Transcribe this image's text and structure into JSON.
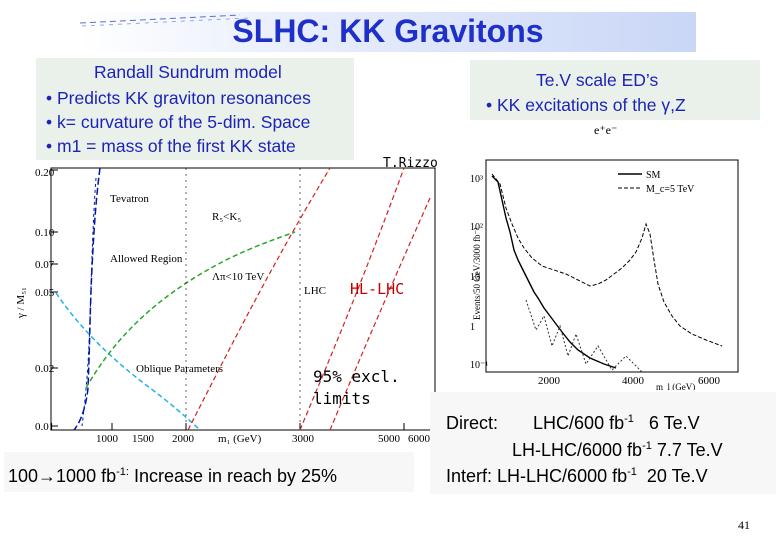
{
  "slide": {
    "title": "SLHC: KK Gravitons",
    "page_number": "41"
  },
  "rs_box": {
    "heading": "Randall Sundrum  model",
    "bullets": [
      "Predicts KK graviton resonances",
      "k= curvature of the 5-dim. Space",
      "m1 = mass of the first KK state"
    ]
  },
  "tev_box": {
    "heading": "Te.V scale ED’s",
    "bullet": "KK excitations of the γ,Z"
  },
  "left_plot": {
    "credit": "T.Rizzo",
    "y_axis_label": "γ / M₅₁",
    "y_ticks": [
      "0.20",
      "0.10",
      "0.07",
      "0.05",
      "0.02",
      "0.01"
    ],
    "x_ticks": [
      "1000",
      "1500",
      "2000",
      "3000",
      "5000",
      "6000"
    ],
    "x_axis_label": "m₁ (GeV)",
    "labels": {
      "tevatron": "Tevatron",
      "rs_constraint": "R₅<K₅",
      "allowed": "Allowed Region",
      "lambda": "Λπ<10 TeV",
      "lhc": "LHC",
      "hl_lhc": "HL-LHC",
      "oblique": "Oblique Parameters",
      "excl_line1": "95% excl.",
      "excl_line2": "limits"
    },
    "reach_note": "100→1000 fb",
    "reach_sup": "-1:",
    "reach_rest": " Increase in reach by 25%"
  },
  "right_plot": {
    "title": "e⁺e⁻",
    "y_axis_label": "Events/50 GeV/3000 fb⁻¹",
    "y_ticks": [
      "10³",
      "10²",
      "10",
      "1",
      "10⁻¹"
    ],
    "x_ticks": [
      "2000",
      "4000",
      "6000"
    ],
    "x_axis_label": "m_l (GeV)",
    "legend": [
      "SM",
      "M_c=5 TeV"
    ]
  },
  "reach_table": {
    "row1_label": "Direct:",
    "row1_lumi": "LHC/600 fb",
    "row1_sup": "-1",
    "row1_val": "6  Te.V",
    "row2_lumi": "LH-LHC/6000 fb",
    "row2_sup": "-1",
    "row2_val": "7.7 Te.V",
    "row3_label": "Interf:",
    "row3_lumi": "LH-LHC/6000 fb",
    "row3_sup": "-1",
    "row3_val": "20 Te.V"
  },
  "colors": {
    "title": "#1f30c8",
    "box_bg": "#eaf0ea",
    "red_label": "#c00000"
  }
}
